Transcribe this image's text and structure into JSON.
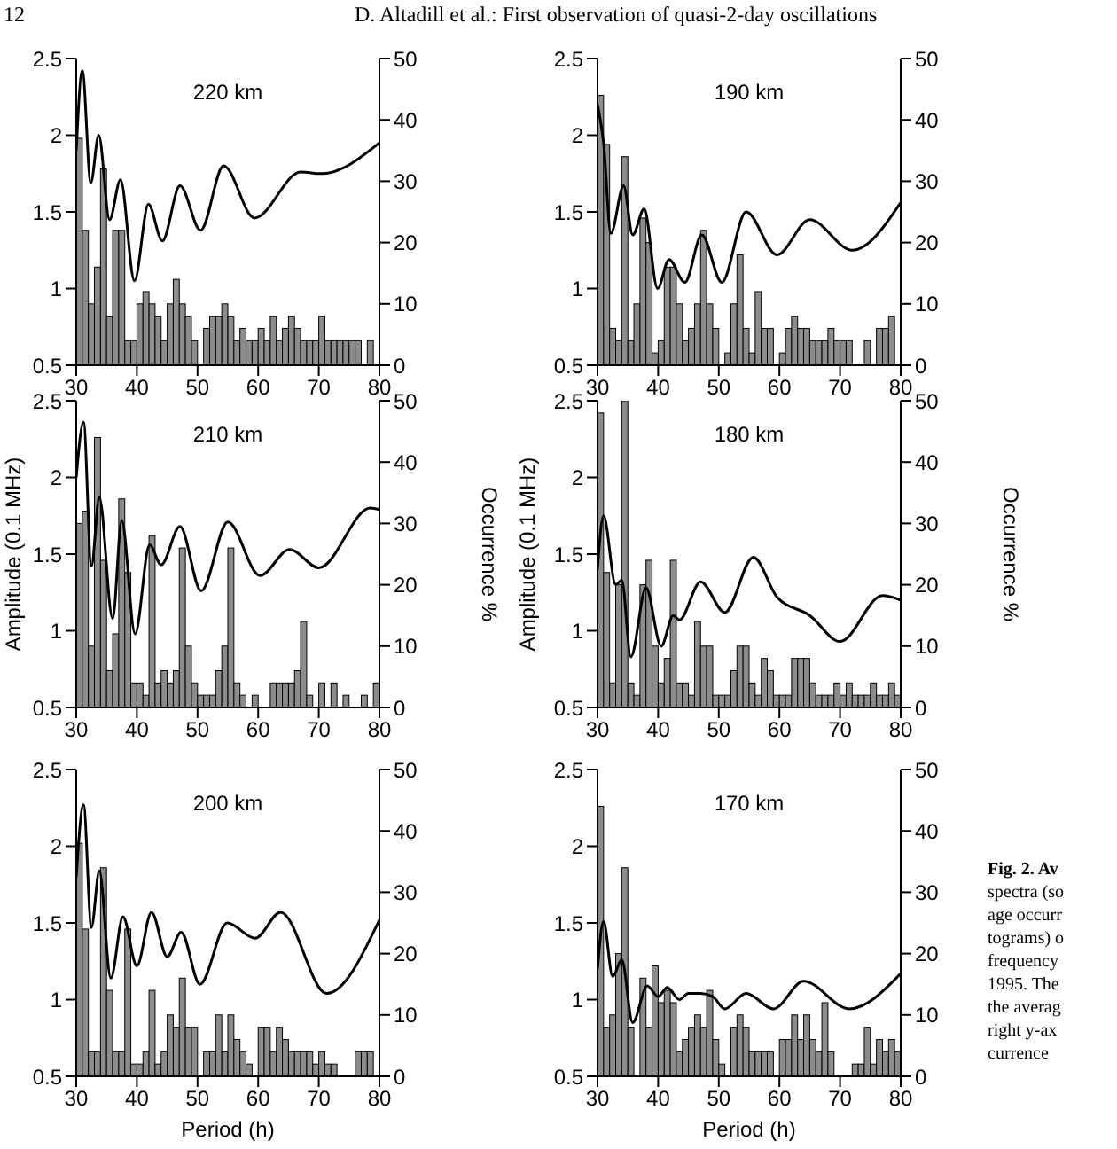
{
  "chart_data": [
    {
      "type": "line",
      "title": "220 km",
      "xlim": [
        30,
        80
      ],
      "xticks": [
        30,
        40,
        50,
        60,
        70,
        80
      ],
      "ylim": [
        0.5,
        2.5
      ],
      "yticks": [
        0.5,
        1.0,
        1.5,
        2.0,
        2.5
      ],
      "y2lim": [
        0,
        50
      ],
      "y2ticks": [
        0,
        10,
        20,
        30,
        40,
        50
      ],
      "annotations": [
        "12",
        "D. Altadill et al.: First observation of quasi-2-day oscillations"
      ],
      "series": [
        {
          "color": "#000000",
          "x": [
            30,
            31,
            32.4,
            33.7,
            35.5,
            37.3,
            39.6,
            41.9,
            44.2,
            47.1,
            50.5,
            54.3,
            59.4,
            67,
            70.5,
            80
          ],
          "values": [
            1.9,
            2.42,
            1.69,
            2.0,
            1.45,
            1.71,
            1.05,
            1.55,
            1.31,
            1.67,
            1.38,
            1.8,
            1.46,
            1.76,
            1.75,
            1.95
          ]
        },
        {
          "type": "histogram",
          "axis": "y2",
          "color": "#8c8c8c",
          "bins": [
            30,
            31,
            32,
            33,
            34,
            35,
            36,
            37,
            38,
            39,
            40,
            41,
            42,
            43,
            44,
            45,
            46,
            47,
            48,
            49,
            50,
            51,
            52,
            53,
            54,
            55,
            56,
            57,
            58,
            59,
            60,
            61,
            62,
            63,
            64,
            65,
            66,
            67,
            68,
            69,
            70,
            71,
            72,
            73,
            74,
            75,
            76,
            77,
            78,
            79,
            80
          ],
          "values": [
            37,
            22,
            10,
            16,
            32,
            8,
            22,
            22,
            4,
            4,
            10,
            12,
            10,
            8,
            4,
            10,
            14,
            10,
            8,
            4,
            0,
            6,
            8,
            8,
            10,
            8,
            4,
            6,
            4,
            4,
            6,
            4,
            8,
            4,
            6,
            8,
            6,
            4,
            4,
            4,
            8,
            4,
            4,
            4,
            4,
            4,
            4,
            0,
            4,
            0
          ]
        }
      ]
    },
    {
      "type": "line",
      "title": "190 km",
      "xlim": [
        30,
        80
      ],
      "xticks": [
        30,
        40,
        50,
        60,
        70,
        80
      ],
      "ylim": [
        0.5,
        2.5
      ],
      "yticks": [
        0.5,
        1.0,
        1.5,
        2.0,
        2.5
      ],
      "y2lim": [
        0,
        50
      ],
      "y2ticks": [
        0,
        10,
        20,
        30,
        40,
        50
      ],
      "series": [
        {
          "color": "#000000",
          "x": [
            30,
            31,
            32.2,
            34.3,
            35.8,
            37.7,
            39.9,
            41.8,
            44.4,
            47.2,
            50.5,
            54.5,
            59.6,
            65,
            72,
            80
          ],
          "values": [
            2.2,
            1.95,
            1.36,
            1.67,
            1.35,
            1.52,
            1.0,
            1.19,
            1.04,
            1.35,
            1.04,
            1.5,
            1.22,
            1.45,
            1.25,
            1.56
          ]
        },
        {
          "type": "histogram",
          "axis": "y2",
          "color": "#8c8c8c",
          "bins": [
            30,
            31,
            32,
            33,
            34,
            35,
            36,
            37,
            38,
            39,
            40,
            41,
            42,
            43,
            44,
            45,
            46,
            47,
            48,
            49,
            50,
            51,
            52,
            53,
            54,
            55,
            56,
            57,
            58,
            59,
            60,
            61,
            62,
            63,
            64,
            65,
            66,
            67,
            68,
            69,
            70,
            71,
            72,
            73,
            74,
            75,
            76,
            77,
            78,
            79,
            80
          ],
          "values": [
            44,
            36,
            6,
            4,
            34,
            4,
            10,
            24,
            20,
            2,
            4,
            16,
            16,
            10,
            4,
            6,
            10,
            22,
            10,
            6,
            0,
            2,
            10,
            18,
            6,
            2,
            12,
            6,
            6,
            0,
            2,
            6,
            8,
            6,
            6,
            4,
            4,
            4,
            6,
            4,
            4,
            4,
            0,
            0,
            4,
            0,
            6,
            6,
            8,
            0
          ]
        }
      ]
    },
    {
      "type": "line",
      "title": "210 km",
      "ylabel": "Amplitude (0.1 MHz)",
      "y2label": "Occurrence %",
      "xlim": [
        30,
        80
      ],
      "xticks": [
        30,
        40,
        50,
        60,
        70,
        80
      ],
      "ylim": [
        0.5,
        2.5
      ],
      "yticks": [
        0.5,
        1.0,
        1.5,
        2.0,
        2.5
      ],
      "y2lim": [
        0,
        50
      ],
      "y2ticks": [
        0,
        10,
        20,
        30,
        40,
        50
      ],
      "series": [
        {
          "color": "#000000",
          "x": [
            30,
            31.2,
            32.5,
            33.8,
            36,
            37.5,
            39.7,
            42.1,
            44,
            47.1,
            50.6,
            55,
            60.3,
            65.2,
            70,
            78.5,
            80
          ],
          "values": [
            2.0,
            2.36,
            1.42,
            1.87,
            1.08,
            1.72,
            0.98,
            1.56,
            1.43,
            1.68,
            1.26,
            1.71,
            1.36,
            1.53,
            1.41,
            1.8,
            1.79
          ]
        },
        {
          "type": "histogram",
          "axis": "y2",
          "color": "#8c8c8c",
          "bins": [
            30,
            31,
            32,
            33,
            34,
            35,
            36,
            37,
            38,
            39,
            40,
            41,
            42,
            43,
            44,
            45,
            46,
            47,
            48,
            49,
            50,
            51,
            52,
            53,
            54,
            55,
            56,
            57,
            58,
            59,
            60,
            61,
            62,
            63,
            64,
            65,
            66,
            67,
            68,
            69,
            70,
            71,
            72,
            73,
            74,
            75,
            76,
            77,
            78,
            79,
            80
          ],
          "values": [
            30,
            32,
            10,
            44,
            24,
            6,
            12,
            34,
            22,
            4,
            4,
            2,
            28,
            4,
            6,
            4,
            6,
            26,
            10,
            4,
            2,
            2,
            2,
            6,
            10,
            26,
            4,
            2,
            0,
            2,
            0,
            0,
            4,
            4,
            4,
            4,
            6,
            14,
            2,
            0,
            4,
            0,
            4,
            0,
            2,
            0,
            0,
            2,
            0,
            4
          ]
        }
      ]
    },
    {
      "type": "line",
      "title": "180 km",
      "ylabel": "Amplitude (0.1 MHz)",
      "y2label": "Occurrence %",
      "xlim": [
        30,
        80
      ],
      "xticks": [
        30,
        40,
        50,
        60,
        70,
        80
      ],
      "ylim": [
        0.5,
        2.5
      ],
      "yticks": [
        0.5,
        1.0,
        1.5,
        2.0,
        2.5
      ],
      "y2lim": [
        0,
        50
      ],
      "y2ticks": [
        0,
        10,
        20,
        30,
        40,
        50
      ],
      "series": [
        {
          "color": "#000000",
          "x": [
            30,
            31,
            33,
            34,
            35.5,
            38,
            40.5,
            42.5,
            43.5,
            47,
            51,
            55.7,
            59.6,
            65,
            70,
            77,
            80
          ],
          "values": [
            1.4,
            1.75,
            1.3,
            1.33,
            0.83,
            1.28,
            0.9,
            1.1,
            1.07,
            1.32,
            1.12,
            1.48,
            1.22,
            1.1,
            0.93,
            1.23,
            1.2
          ]
        },
        {
          "type": "histogram",
          "axis": "y2",
          "color": "#8c8c8c",
          "bins": [
            30,
            31,
            32,
            33,
            34,
            35,
            36,
            37,
            38,
            39,
            40,
            41,
            42,
            43,
            44,
            45,
            46,
            47,
            48,
            49,
            50,
            51,
            52,
            53,
            54,
            55,
            56,
            57,
            58,
            59,
            60,
            61,
            62,
            63,
            64,
            65,
            66,
            67,
            68,
            69,
            70,
            71,
            72,
            73,
            74,
            75,
            76,
            77,
            78,
            79,
            80
          ],
          "values": [
            48,
            22,
            4,
            20,
            50,
            4,
            2,
            20,
            24,
            10,
            4,
            8,
            24,
            4,
            4,
            2,
            14,
            10,
            10,
            2,
            2,
            2,
            6,
            10,
            10,
            4,
            2,
            8,
            6,
            2,
            2,
            2,
            8,
            8,
            8,
            4,
            2,
            2,
            2,
            4,
            2,
            4,
            2,
            2,
            2,
            4,
            2,
            2,
            4,
            2
          ]
        }
      ]
    },
    {
      "type": "line",
      "title": "200 km",
      "xlabel": "Period (h)",
      "xlim": [
        30,
        80
      ],
      "xticks": [
        30,
        40,
        50,
        60,
        70,
        80
      ],
      "ylim": [
        0.5,
        2.5
      ],
      "yticks": [
        0.5,
        1.0,
        1.5,
        2.0,
        2.5
      ],
      "y2lim": [
        0,
        50
      ],
      "y2ticks": [
        0,
        10,
        20,
        30,
        40,
        50
      ],
      "series": [
        {
          "color": "#000000",
          "x": [
            30,
            31.2,
            32.5,
            33.8,
            35.7,
            37.7,
            40,
            42.4,
            45,
            47.3,
            50.4,
            54.9,
            59.5,
            63.7,
            71.3,
            80
          ],
          "values": [
            1.8,
            2.27,
            1.47,
            1.84,
            1.14,
            1.54,
            1.22,
            1.57,
            1.28,
            1.44,
            1.1,
            1.5,
            1.4,
            1.57,
            1.04,
            1.52
          ]
        },
        {
          "type": "histogram",
          "axis": "y2",
          "color": "#8c8c8c",
          "bins": [
            30,
            31,
            32,
            33,
            34,
            35,
            36,
            37,
            38,
            39,
            40,
            41,
            42,
            43,
            44,
            45,
            46,
            47,
            48,
            49,
            50,
            51,
            52,
            53,
            54,
            55,
            56,
            57,
            58,
            59,
            60,
            61,
            62,
            63,
            64,
            65,
            66,
            67,
            68,
            69,
            70,
            71,
            72,
            73,
            74,
            75,
            76,
            77,
            78,
            79,
            80
          ],
          "values": [
            38,
            24,
            4,
            4,
            34,
            14,
            4,
            4,
            24,
            2,
            2,
            4,
            14,
            2,
            4,
            10,
            8,
            16,
            8,
            8,
            0,
            4,
            4,
            10,
            4,
            10,
            6,
            4,
            2,
            0,
            8,
            8,
            4,
            8,
            6,
            4,
            4,
            4,
            4,
            2,
            4,
            2,
            2,
            0,
            0,
            0,
            4,
            4,
            4,
            0
          ]
        }
      ]
    },
    {
      "type": "line",
      "title": "170 km",
      "xlabel": "Period (h)",
      "xlim": [
        30,
        80
      ],
      "xticks": [
        30,
        40,
        50,
        60,
        70,
        80
      ],
      "ylim": [
        0.5,
        2.5
      ],
      "yticks": [
        0.5,
        1.0,
        1.5,
        2.0,
        2.5
      ],
      "y2lim": [
        0,
        50
      ],
      "y2ticks": [
        0,
        10,
        20,
        30,
        40,
        50
      ],
      "annotations": [
        "Fig. 2. Av",
        "spectra (so",
        "age occurr",
        "tograms) o",
        "frequency",
        "1995. The",
        "the averag",
        "right y-ax",
        "currence"
      ],
      "series": [
        {
          "color": "#000000",
          "x": [
            30,
            31,
            32.5,
            34,
            35.8,
            38.2,
            40,
            41.5,
            43.5,
            45,
            47,
            49,
            51,
            54.5,
            59,
            64,
            71.5,
            80
          ],
          "values": [
            1.2,
            1.51,
            1.15,
            1.26,
            0.85,
            1.09,
            1.02,
            1.08,
            1.0,
            1.04,
            1.04,
            1.02,
            0.94,
            1.04,
            0.94,
            1.12,
            0.94,
            1.17
          ]
        },
        {
          "type": "histogram",
          "axis": "y2",
          "color": "#8c8c8c",
          "bins": [
            30,
            31,
            32,
            33,
            34,
            35,
            36,
            37,
            38,
            39,
            40,
            41,
            42,
            43,
            44,
            45,
            46,
            47,
            48,
            49,
            50,
            51,
            52,
            53,
            54,
            55,
            56,
            57,
            58,
            59,
            60,
            61,
            62,
            63,
            64,
            65,
            66,
            67,
            68,
            69,
            70,
            71,
            72,
            73,
            74,
            75,
            76,
            77,
            78,
            79,
            80
          ],
          "values": [
            44,
            8,
            10,
            20,
            34,
            8,
            0,
            16,
            8,
            18,
            12,
            14,
            12,
            4,
            6,
            8,
            10,
            8,
            14,
            6,
            2,
            0,
            8,
            10,
            8,
            4,
            4,
            4,
            4,
            0,
            6,
            6,
            10,
            6,
            10,
            6,
            4,
            12,
            4,
            0,
            0,
            0,
            2,
            2,
            8,
            2,
            6,
            4,
            6,
            4
          ]
        }
      ]
    }
  ]
}
